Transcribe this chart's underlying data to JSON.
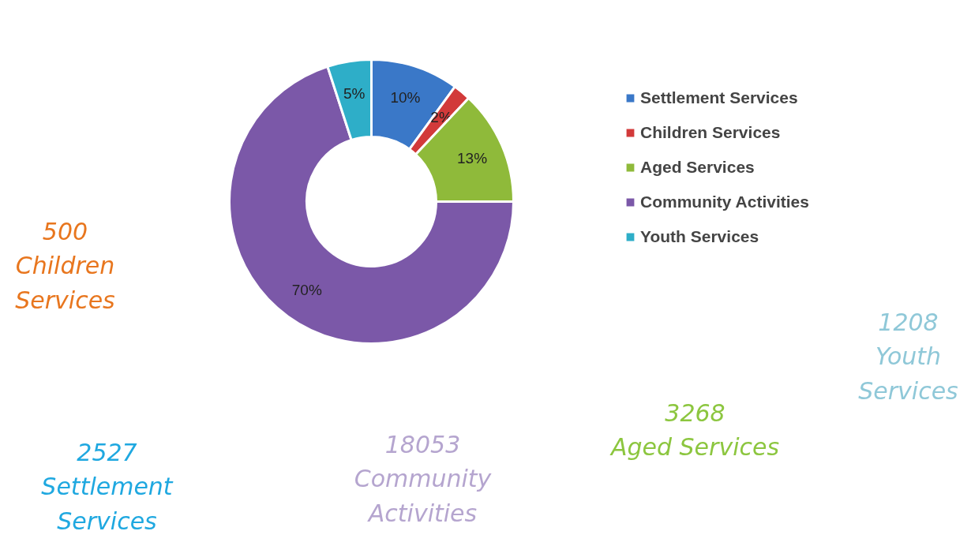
{
  "chart_data": {
    "type": "donut",
    "categories": [
      "Settlement Services",
      "Children Services",
      "Aged Services",
      "Community Activities",
      "Youth Services"
    ],
    "values": [
      10,
      2,
      13,
      70,
      5
    ],
    "colors": [
      "#3a78c8",
      "#d23a3a",
      "#8fba3a",
      "#7b58a8",
      "#2eaec8"
    ],
    "value_labels": [
      "10%",
      "2%",
      "13%",
      "70%",
      "5%"
    ],
    "legend": "right",
    "annotations": [
      "500\nChildren\nServices",
      "2527\nSettlement\nServices",
      "18053\nCommunity\nActivities",
      "3268\nAged Services",
      "1208\nYouth\nServices"
    ]
  }
}
